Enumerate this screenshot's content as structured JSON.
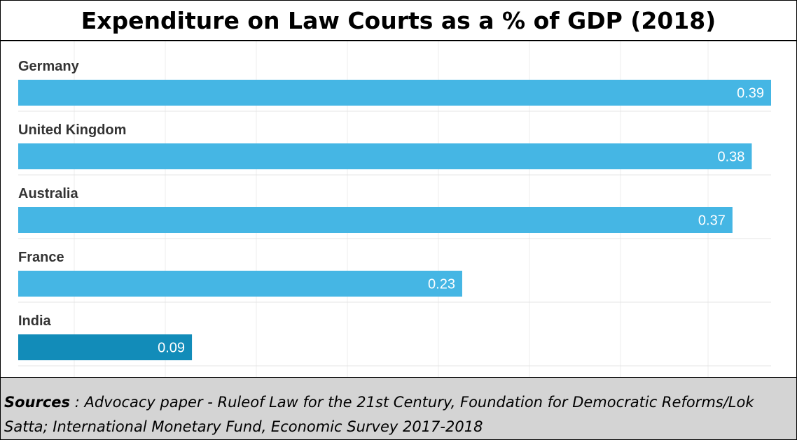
{
  "chart_data": {
    "type": "bar",
    "orientation": "horizontal",
    "title": "Expenditure on Law Courts as a % of GDP (2018)",
    "categories": [
      "Germany",
      "United Kingdom",
      "Australia",
      "France",
      "India"
    ],
    "values": [
      0.39,
      0.38,
      0.37,
      0.23,
      0.09
    ],
    "value_labels": [
      "0.39",
      "0.38",
      "0.37",
      "0.23",
      "0.09"
    ],
    "xlim": [
      0,
      0.39
    ],
    "xlabel": "",
    "ylabel": "",
    "grid": true,
    "colors": {
      "default": "#45b6e4",
      "highlight": "#128cb9"
    },
    "highlight_category": "India"
  },
  "sources": {
    "label": "Sources",
    "text": " : Advocacy paper - Ruleof Law for the 21st Century, Foundation for Democratic Reforms/Lok Satta;  International Monetary Fund, Economic Survey 2017-2018"
  }
}
